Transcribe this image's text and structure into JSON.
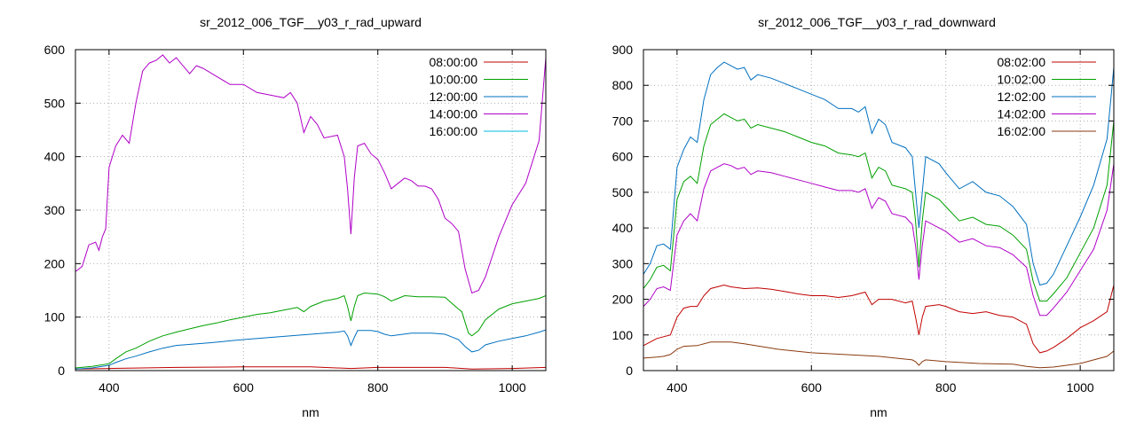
{
  "chart_data": [
    {
      "type": "line",
      "title": "sr_2012_006_TGF__y03_r_rad_upward",
      "xlabel": "nm",
      "ylabel": "",
      "xlim": [
        350,
        1050
      ],
      "ylim": [
        0,
        600
      ],
      "xticks": [
        "400",
        "600",
        "800",
        "1000"
      ],
      "yticks": [
        "0",
        "100",
        "200",
        "300",
        "400",
        "500",
        "600"
      ],
      "grid": true,
      "legend_position": "top-right",
      "series": [
        {
          "name": "08:00:00",
          "color": "#c00000",
          "x": [
            350,
            400,
            450,
            500,
            600,
            700,
            760,
            800,
            900,
            940,
            1000,
            1050
          ],
          "y": [
            3,
            4,
            5,
            6,
            7,
            7,
            4,
            6,
            6,
            3,
            4,
            6
          ]
        },
        {
          "name": "10:00:00",
          "color": "#00a000",
          "x": [
            350,
            375,
            400,
            410,
            425,
            440,
            460,
            480,
            500,
            520,
            540,
            560,
            580,
            600,
            620,
            640,
            660,
            680,
            690,
            700,
            720,
            740,
            750,
            755,
            760,
            765,
            770,
            780,
            800,
            810,
            820,
            830,
            840,
            860,
            880,
            900,
            920,
            925,
            930,
            935,
            940,
            950,
            960,
            980,
            1000,
            1020,
            1040,
            1050
          ],
          "y": [
            5,
            8,
            13,
            22,
            35,
            42,
            55,
            65,
            72,
            78,
            84,
            89,
            95,
            100,
            105,
            108,
            113,
            118,
            110,
            120,
            130,
            135,
            140,
            120,
            93,
            120,
            140,
            145,
            143,
            138,
            130,
            135,
            140,
            138,
            138,
            137,
            115,
            110,
            90,
            70,
            65,
            75,
            95,
            115,
            125,
            130,
            135,
            140
          ]
        },
        {
          "name": "12:00:00",
          "color": "#0070c0",
          "x": [
            350,
            375,
            400,
            410,
            425,
            440,
            460,
            480,
            500,
            550,
            600,
            650,
            700,
            740,
            750,
            755,
            760,
            765,
            770,
            790,
            800,
            810,
            820,
            850,
            880,
            900,
            920,
            930,
            940,
            950,
            960,
            980,
            1000,
            1020,
            1040,
            1050
          ],
          "y": [
            3,
            5,
            10,
            15,
            22,
            27,
            35,
            42,
            47,
            52,
            58,
            63,
            68,
            72,
            74,
            65,
            47,
            62,
            75,
            75,
            73,
            68,
            65,
            70,
            70,
            68,
            58,
            45,
            35,
            38,
            48,
            55,
            60,
            65,
            72,
            76
          ]
        },
        {
          "name": "14:00:00",
          "color": "#b000c8",
          "x": [
            350,
            360,
            370,
            380,
            385,
            390,
            395,
            400,
            405,
            410,
            420,
            430,
            440,
            450,
            460,
            470,
            480,
            490,
            500,
            510,
            520,
            530,
            540,
            560,
            580,
            600,
            620,
            640,
            660,
            670,
            680,
            690,
            700,
            710,
            720,
            740,
            750,
            755,
            760,
            765,
            770,
            780,
            790,
            800,
            810,
            820,
            830,
            840,
            850,
            860,
            870,
            880,
            890,
            900,
            910,
            920,
            930,
            940,
            950,
            960,
            980,
            1000,
            1020,
            1040,
            1050
          ],
          "y": [
            185,
            195,
            235,
            240,
            225,
            250,
            265,
            380,
            400,
            420,
            440,
            425,
            500,
            560,
            575,
            580,
            590,
            575,
            585,
            570,
            555,
            570,
            565,
            550,
            535,
            535,
            520,
            515,
            510,
            520,
            500,
            445,
            475,
            460,
            435,
            440,
            400,
            340,
            255,
            360,
            420,
            425,
            405,
            395,
            370,
            340,
            350,
            360,
            355,
            345,
            345,
            340,
            320,
            285,
            275,
            260,
            190,
            145,
            150,
            175,
            250,
            310,
            350,
            430,
            585
          ]
        },
        {
          "name": "16:00:00",
          "color": "#00b8e0",
          "x": [],
          "y": []
        }
      ]
    },
    {
      "type": "line",
      "title": "sr_2012_006_TGF__y03_r_rad_downward",
      "xlabel": "nm",
      "ylabel": "",
      "xlim": [
        350,
        1050
      ],
      "ylim": [
        0,
        900
      ],
      "xticks": [
        "400",
        "600",
        "800",
        "1000"
      ],
      "yticks": [
        "0",
        "100",
        "200",
        "300",
        "400",
        "500",
        "600",
        "700",
        "800",
        "900"
      ],
      "grid": true,
      "legend_position": "top-right",
      "series": [
        {
          "name": "08:02:00",
          "color": "#c00000",
          "x": [
            350,
            370,
            380,
            390,
            400,
            410,
            420,
            430,
            440,
            450,
            470,
            480,
            500,
            520,
            540,
            560,
            580,
            600,
            620,
            640,
            660,
            680,
            690,
            700,
            720,
            740,
            750,
            755,
            760,
            765,
            770,
            790,
            800,
            820,
            840,
            860,
            880,
            900,
            920,
            930,
            940,
            950,
            960,
            980,
            1000,
            1020,
            1040,
            1050
          ],
          "y": [
            70,
            90,
            95,
            100,
            150,
            175,
            180,
            180,
            210,
            230,
            240,
            235,
            230,
            232,
            228,
            222,
            215,
            210,
            210,
            205,
            210,
            220,
            185,
            200,
            200,
            190,
            195,
            150,
            100,
            150,
            180,
            185,
            180,
            165,
            160,
            165,
            155,
            150,
            130,
            75,
            50,
            55,
            65,
            90,
            120,
            140,
            165,
            240
          ]
        },
        {
          "name": "10:02:00",
          "color": "#00a000",
          "x": [
            350,
            360,
            370,
            380,
            390,
            400,
            410,
            420,
            430,
            440,
            450,
            460,
            470,
            480,
            490,
            500,
            510,
            520,
            540,
            560,
            580,
            600,
            620,
            640,
            660,
            670,
            680,
            690,
            700,
            710,
            720,
            740,
            750,
            755,
            760,
            765,
            770,
            790,
            800,
            820,
            840,
            860,
            880,
            900,
            920,
            930,
            940,
            950,
            960,
            980,
            1000,
            1020,
            1040,
            1050
          ],
          "y": [
            230,
            255,
            290,
            295,
            280,
            480,
            530,
            545,
            525,
            630,
            690,
            705,
            720,
            710,
            700,
            705,
            680,
            690,
            680,
            670,
            655,
            640,
            630,
            610,
            605,
            600,
            610,
            540,
            570,
            560,
            520,
            510,
            500,
            420,
            290,
            420,
            500,
            480,
            460,
            420,
            430,
            410,
            405,
            380,
            340,
            250,
            195,
            195,
            215,
            260,
            330,
            400,
            520,
            700
          ]
        },
        {
          "name": "12:02:00",
          "color": "#0070c0",
          "x": [
            350,
            360,
            370,
            380,
            390,
            400,
            410,
            420,
            430,
            440,
            450,
            460,
            470,
            480,
            490,
            500,
            510,
            520,
            540,
            560,
            580,
            600,
            620,
            640,
            660,
            670,
            680,
            690,
            700,
            710,
            720,
            740,
            750,
            755,
            760,
            765,
            770,
            790,
            800,
            820,
            840,
            860,
            880,
            900,
            920,
            930,
            940,
            950,
            960,
            980,
            1000,
            1020,
            1040,
            1050
          ],
          "y": [
            270,
            300,
            350,
            355,
            340,
            570,
            620,
            655,
            640,
            760,
            830,
            850,
            865,
            855,
            845,
            850,
            815,
            830,
            820,
            805,
            790,
            775,
            760,
            735,
            735,
            725,
            740,
            665,
            705,
            690,
            640,
            625,
            600,
            500,
            400,
            500,
            600,
            580,
            555,
            510,
            530,
            500,
            490,
            460,
            410,
            300,
            240,
            245,
            270,
            350,
            430,
            520,
            650,
            850
          ]
        },
        {
          "name": "14:02:00",
          "color": "#b000c8",
          "x": [
            350,
            360,
            370,
            380,
            390,
            400,
            410,
            420,
            430,
            440,
            450,
            460,
            470,
            480,
            490,
            500,
            510,
            520,
            540,
            560,
            580,
            600,
            620,
            640,
            660,
            670,
            680,
            690,
            700,
            710,
            720,
            740,
            750,
            755,
            760,
            765,
            770,
            790,
            800,
            820,
            840,
            860,
            880,
            900,
            920,
            930,
            940,
            950,
            960,
            980,
            1000,
            1020,
            1040,
            1050
          ],
          "y": [
            180,
            200,
            230,
            235,
            225,
            380,
            420,
            440,
            420,
            510,
            560,
            570,
            580,
            575,
            565,
            570,
            550,
            560,
            555,
            545,
            535,
            525,
            515,
            505,
            505,
            500,
            510,
            455,
            485,
            475,
            440,
            430,
            410,
            350,
            255,
            350,
            420,
            400,
            390,
            360,
            370,
            350,
            345,
            325,
            290,
            210,
            155,
            155,
            175,
            220,
            280,
            340,
            450,
            580
          ]
        },
        {
          "name": "16:02:00",
          "color": "#8b3a0f",
          "x": [
            350,
            370,
            380,
            390,
            400,
            410,
            430,
            450,
            480,
            500,
            550,
            600,
            650,
            700,
            750,
            755,
            760,
            765,
            770,
            800,
            850,
            900,
            920,
            940,
            960,
            1000,
            1040,
            1050
          ],
          "y": [
            35,
            38,
            40,
            45,
            60,
            68,
            70,
            80,
            80,
            75,
            60,
            50,
            45,
            40,
            30,
            25,
            15,
            25,
            30,
            25,
            20,
            18,
            12,
            8,
            10,
            20,
            40,
            55
          ]
        }
      ]
    }
  ]
}
